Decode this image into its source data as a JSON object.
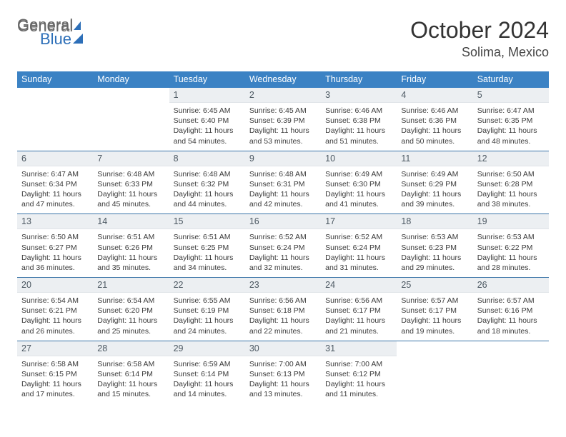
{
  "brand": {
    "part1": "General",
    "part2": "Blue"
  },
  "title": "October 2024",
  "location": "Solima, Mexico",
  "day_headers": [
    "Sunday",
    "Monday",
    "Tuesday",
    "Wednesday",
    "Thursday",
    "Friday",
    "Saturday"
  ],
  "colors": {
    "header_bg": "#3b82c4",
    "header_text": "#ffffff",
    "date_bg": "#eceff2",
    "divider": "#3b74a8",
    "logo_blue": "#2d6fb8"
  },
  "weeks": [
    [
      {
        "date": "",
        "sunrise": "",
        "sunset": "",
        "daylight": ""
      },
      {
        "date": "",
        "sunrise": "",
        "sunset": "",
        "daylight": ""
      },
      {
        "date": "1",
        "sunrise": "Sunrise: 6:45 AM",
        "sunset": "Sunset: 6:40 PM",
        "daylight": "Daylight: 11 hours and 54 minutes."
      },
      {
        "date": "2",
        "sunrise": "Sunrise: 6:45 AM",
        "sunset": "Sunset: 6:39 PM",
        "daylight": "Daylight: 11 hours and 53 minutes."
      },
      {
        "date": "3",
        "sunrise": "Sunrise: 6:46 AM",
        "sunset": "Sunset: 6:38 PM",
        "daylight": "Daylight: 11 hours and 51 minutes."
      },
      {
        "date": "4",
        "sunrise": "Sunrise: 6:46 AM",
        "sunset": "Sunset: 6:36 PM",
        "daylight": "Daylight: 11 hours and 50 minutes."
      },
      {
        "date": "5",
        "sunrise": "Sunrise: 6:47 AM",
        "sunset": "Sunset: 6:35 PM",
        "daylight": "Daylight: 11 hours and 48 minutes."
      }
    ],
    [
      {
        "date": "6",
        "sunrise": "Sunrise: 6:47 AM",
        "sunset": "Sunset: 6:34 PM",
        "daylight": "Daylight: 11 hours and 47 minutes."
      },
      {
        "date": "7",
        "sunrise": "Sunrise: 6:48 AM",
        "sunset": "Sunset: 6:33 PM",
        "daylight": "Daylight: 11 hours and 45 minutes."
      },
      {
        "date": "8",
        "sunrise": "Sunrise: 6:48 AM",
        "sunset": "Sunset: 6:32 PM",
        "daylight": "Daylight: 11 hours and 44 minutes."
      },
      {
        "date": "9",
        "sunrise": "Sunrise: 6:48 AM",
        "sunset": "Sunset: 6:31 PM",
        "daylight": "Daylight: 11 hours and 42 minutes."
      },
      {
        "date": "10",
        "sunrise": "Sunrise: 6:49 AM",
        "sunset": "Sunset: 6:30 PM",
        "daylight": "Daylight: 11 hours and 41 minutes."
      },
      {
        "date": "11",
        "sunrise": "Sunrise: 6:49 AM",
        "sunset": "Sunset: 6:29 PM",
        "daylight": "Daylight: 11 hours and 39 minutes."
      },
      {
        "date": "12",
        "sunrise": "Sunrise: 6:50 AM",
        "sunset": "Sunset: 6:28 PM",
        "daylight": "Daylight: 11 hours and 38 minutes."
      }
    ],
    [
      {
        "date": "13",
        "sunrise": "Sunrise: 6:50 AM",
        "sunset": "Sunset: 6:27 PM",
        "daylight": "Daylight: 11 hours and 36 minutes."
      },
      {
        "date": "14",
        "sunrise": "Sunrise: 6:51 AM",
        "sunset": "Sunset: 6:26 PM",
        "daylight": "Daylight: 11 hours and 35 minutes."
      },
      {
        "date": "15",
        "sunrise": "Sunrise: 6:51 AM",
        "sunset": "Sunset: 6:25 PM",
        "daylight": "Daylight: 11 hours and 34 minutes."
      },
      {
        "date": "16",
        "sunrise": "Sunrise: 6:52 AM",
        "sunset": "Sunset: 6:24 PM",
        "daylight": "Daylight: 11 hours and 32 minutes."
      },
      {
        "date": "17",
        "sunrise": "Sunrise: 6:52 AM",
        "sunset": "Sunset: 6:24 PM",
        "daylight": "Daylight: 11 hours and 31 minutes."
      },
      {
        "date": "18",
        "sunrise": "Sunrise: 6:53 AM",
        "sunset": "Sunset: 6:23 PM",
        "daylight": "Daylight: 11 hours and 29 minutes."
      },
      {
        "date": "19",
        "sunrise": "Sunrise: 6:53 AM",
        "sunset": "Sunset: 6:22 PM",
        "daylight": "Daylight: 11 hours and 28 minutes."
      }
    ],
    [
      {
        "date": "20",
        "sunrise": "Sunrise: 6:54 AM",
        "sunset": "Sunset: 6:21 PM",
        "daylight": "Daylight: 11 hours and 26 minutes."
      },
      {
        "date": "21",
        "sunrise": "Sunrise: 6:54 AM",
        "sunset": "Sunset: 6:20 PM",
        "daylight": "Daylight: 11 hours and 25 minutes."
      },
      {
        "date": "22",
        "sunrise": "Sunrise: 6:55 AM",
        "sunset": "Sunset: 6:19 PM",
        "daylight": "Daylight: 11 hours and 24 minutes."
      },
      {
        "date": "23",
        "sunrise": "Sunrise: 6:56 AM",
        "sunset": "Sunset: 6:18 PM",
        "daylight": "Daylight: 11 hours and 22 minutes."
      },
      {
        "date": "24",
        "sunrise": "Sunrise: 6:56 AM",
        "sunset": "Sunset: 6:17 PM",
        "daylight": "Daylight: 11 hours and 21 minutes."
      },
      {
        "date": "25",
        "sunrise": "Sunrise: 6:57 AM",
        "sunset": "Sunset: 6:17 PM",
        "daylight": "Daylight: 11 hours and 19 minutes."
      },
      {
        "date": "26",
        "sunrise": "Sunrise: 6:57 AM",
        "sunset": "Sunset: 6:16 PM",
        "daylight": "Daylight: 11 hours and 18 minutes."
      }
    ],
    [
      {
        "date": "27",
        "sunrise": "Sunrise: 6:58 AM",
        "sunset": "Sunset: 6:15 PM",
        "daylight": "Daylight: 11 hours and 17 minutes."
      },
      {
        "date": "28",
        "sunrise": "Sunrise: 6:58 AM",
        "sunset": "Sunset: 6:14 PM",
        "daylight": "Daylight: 11 hours and 15 minutes."
      },
      {
        "date": "29",
        "sunrise": "Sunrise: 6:59 AM",
        "sunset": "Sunset: 6:14 PM",
        "daylight": "Daylight: 11 hours and 14 minutes."
      },
      {
        "date": "30",
        "sunrise": "Sunrise: 7:00 AM",
        "sunset": "Sunset: 6:13 PM",
        "daylight": "Daylight: 11 hours and 13 minutes."
      },
      {
        "date": "31",
        "sunrise": "Sunrise: 7:00 AM",
        "sunset": "Sunset: 6:12 PM",
        "daylight": "Daylight: 11 hours and 11 minutes."
      },
      {
        "date": "",
        "sunrise": "",
        "sunset": "",
        "daylight": ""
      },
      {
        "date": "",
        "sunrise": "",
        "sunset": "",
        "daylight": ""
      }
    ]
  ]
}
